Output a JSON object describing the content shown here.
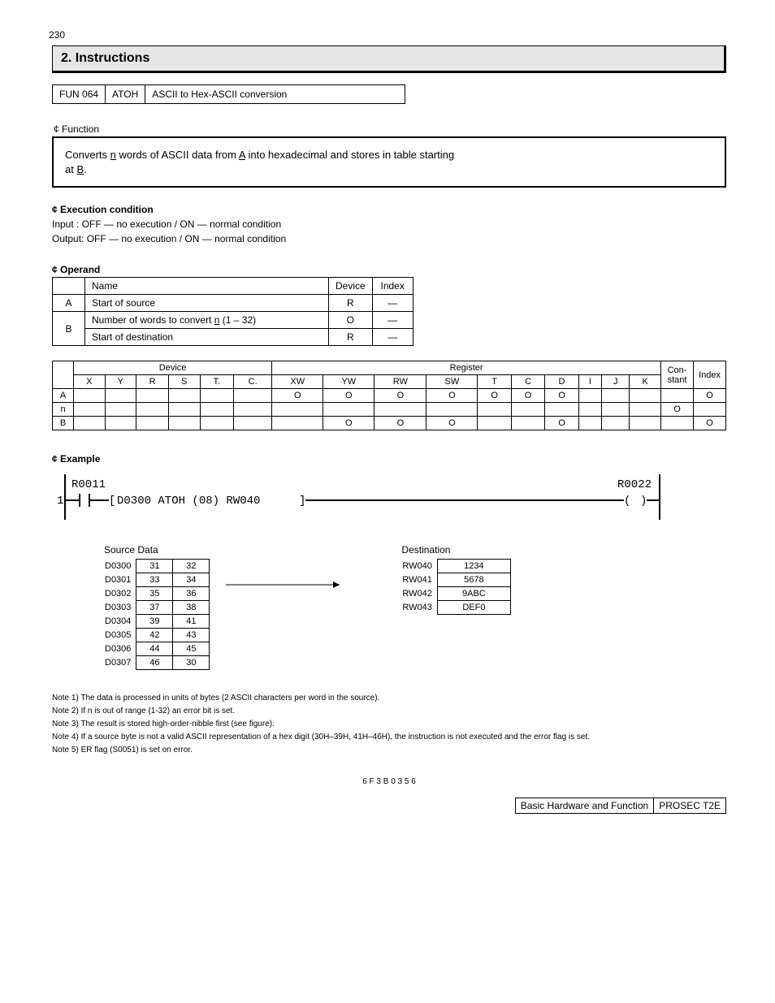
{
  "page": {
    "number": "230",
    "footer_left": "Basic Hardware and Function",
    "footer_right": "PROSEC T2E"
  },
  "title": "2. Instructions",
  "header_table": {
    "funno_label": "FUN",
    "funno": "064",
    "mnemonic": "ATOH",
    "name": "ASCII to Hex-ASCII conversion"
  },
  "function": {
    "label": "¢ Function",
    "line1": "Converts ",
    "line1_n": "n",
    "line1_cont": " words of ASCII data from ",
    "line1_A": "A",
    "line1_rest": " into hexadecimal and stores in table starting",
    "line2_at": "at ",
    "line2_B": "B",
    "line2_end": "."
  },
  "execution": {
    "label": "¢ Execution condition",
    "line1": "Input : OFF — no execution / ON — normal condition",
    "line2": "Output: OFF — no execution / ON — normal condition"
  },
  "operand": {
    "label": "¢ Operand",
    "rows": [
      {
        "hdr": "",
        "name": "Name",
        "dev": "Device",
        "idx": "Index"
      },
      {
        "hdr": "A",
        "name": "Start of source",
        "dev": "R",
        "idx": "—"
      },
      {
        "hdr": "B",
        "name0": "Number of words to convert ",
        "name0_n": "n",
        "name0_end": " (1 – 32)",
        "dev0": "O",
        "idx0": "—",
        "name1": "Start of destination",
        "dev1": "R",
        "idx1": "—"
      }
    ]
  },
  "devices": {
    "header": [
      "",
      "",
      "Device",
      "",
      "",
      "",
      "",
      "",
      "Register",
      "",
      "",
      "",
      "",
      "",
      "",
      "",
      "",
      "Con-stant",
      "Index"
    ],
    "sub": [
      "",
      "X",
      "Y",
      "R",
      "S",
      "T.",
      "C.",
      "XW",
      "YW",
      "RW",
      "SW",
      "T",
      "C",
      "D",
      "I",
      "J",
      "K",
      "",
      ""
    ],
    "rows": [
      [
        "A",
        "",
        "",
        "",
        "",
        "",
        "",
        "O",
        "O",
        "O",
        "O",
        "O",
        "O",
        "O",
        "",
        "",
        "",
        "",
        "O"
      ],
      [
        "n",
        "",
        "",
        "",
        "",
        "",
        "",
        "",
        "",
        "",
        "",
        "",
        "",
        "",
        "",
        "",
        "",
        "O",
        ""
      ],
      [
        "B",
        "",
        "",
        "",
        "",
        "",
        "",
        "",
        "O",
        "O",
        "O",
        "",
        "",
        "O",
        "",
        "",
        "",
        "",
        "O"
      ]
    ]
  },
  "example": {
    "label": "¢ Example"
  },
  "ladder": {
    "left_contact": "R0011",
    "rung_num": "1",
    "box": "D0300  ATOH (08) RW040",
    "right_coil": "R0022"
  },
  "diagram": {
    "source_title": "Source Data",
    "dest_title": "Destination",
    "src_labels": [
      "D0300",
      "D0301",
      "D0302",
      "D0303",
      "D0304",
      "D0305",
      "D0306",
      "D0307"
    ],
    "src_values": [
      [
        "31",
        "32"
      ],
      [
        "33",
        "34"
      ],
      [
        "35",
        "36"
      ],
      [
        "37",
        "38"
      ],
      [
        "39",
        "41"
      ],
      [
        "42",
        "43"
      ],
      [
        "44",
        "45"
      ],
      [
        "46",
        "30"
      ]
    ],
    "dst_labels": [
      "RW040",
      "RW041",
      "RW042",
      "RW043"
    ],
    "dst_values": [
      "1234",
      "5678",
      "9ABC",
      "DEF0"
    ]
  },
  "notes": [
    "Note 1) The data is processed in units of bytes (2 ASCII characters per word in the source).",
    "Note 2) If n is out of range (1-32) an error bit is set.",
    "Note 3) The result is stored high-order-nibble first (see figure).",
    "Note 4) If a source byte is not a valid ASCII representation of a hex digit (30H–39H, 41H–46H), the instruction is not executed and the error flag is set.",
    "Note 5) ER flag (S0051) is set on error."
  ],
  "doc_ref": "6 F 3 B 0 3 5 6"
}
